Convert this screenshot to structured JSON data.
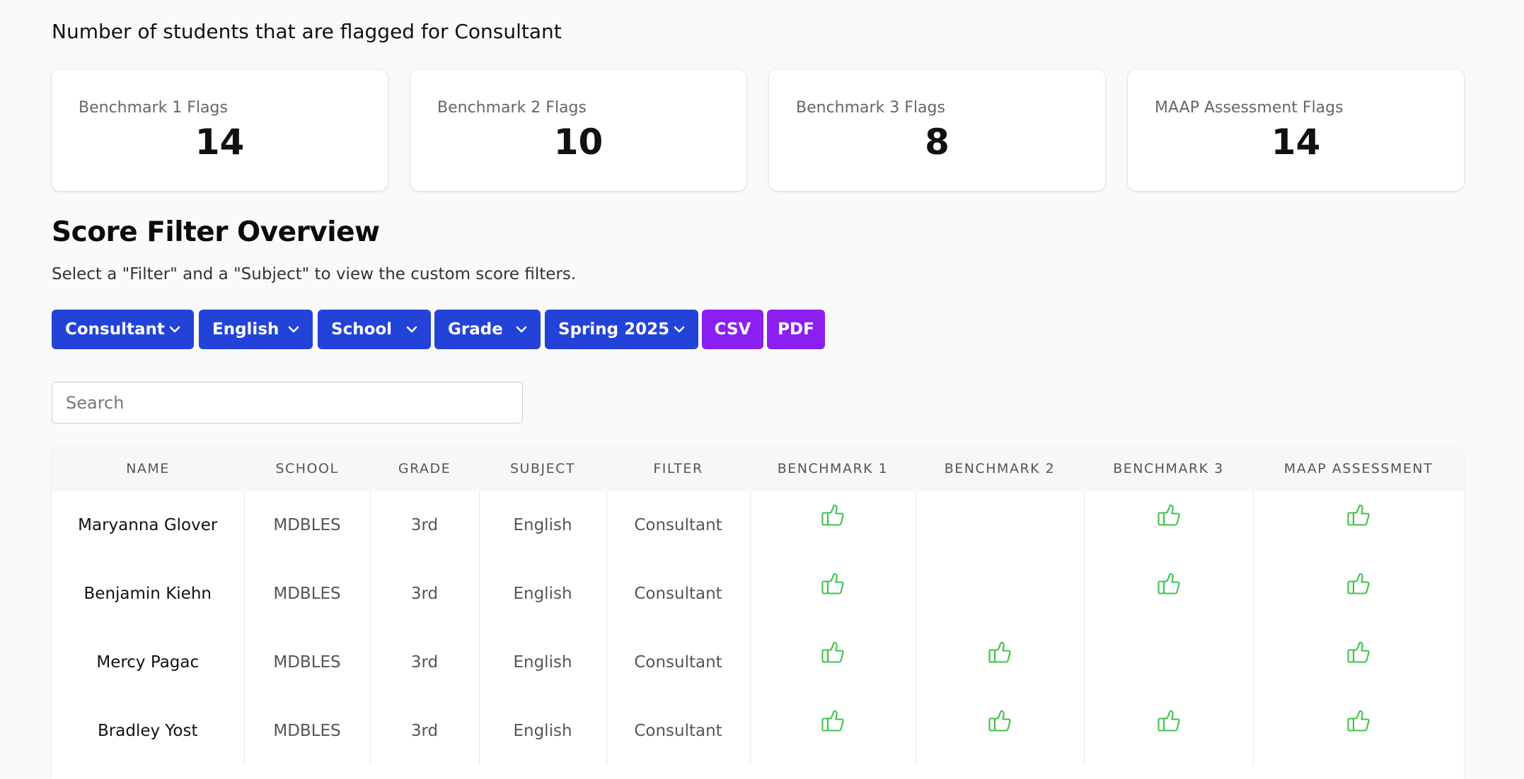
{
  "header": {
    "title": "Number of students that are flagged for Consultant"
  },
  "cards": [
    {
      "label": "Benchmark 1 Flags",
      "value": "14"
    },
    {
      "label": "Benchmark 2 Flags",
      "value": "10"
    },
    {
      "label": "Benchmark 3 Flags",
      "value": "8"
    },
    {
      "label": "MAAP Assessment Flags",
      "value": "14"
    }
  ],
  "overview": {
    "title": "Score Filter Overview",
    "subtitle": "Select a \"Filter\" and a \"Subject\" to view the custom score filters."
  },
  "filters": {
    "filter": "Consultant",
    "subject": "English",
    "school": "School",
    "grade": "Grade",
    "term": "Spring 2025",
    "csv_label": "CSV",
    "pdf_label": "PDF"
  },
  "search": {
    "placeholder": "Search",
    "value": ""
  },
  "table": {
    "columns": [
      "NAME",
      "SCHOOL",
      "GRADE",
      "SUBJECT",
      "FILTER",
      "BENCHMARK 1",
      "BENCHMARK 2",
      "BENCHMARK 3",
      "MAAP ASSESSMENT"
    ],
    "rows": [
      {
        "name": "Maryanna Glover",
        "school": "MDBLES",
        "grade": "3rd",
        "subject": "English",
        "filter": "Consultant",
        "flags": [
          true,
          false,
          true,
          true
        ]
      },
      {
        "name": "Benjamin Kiehn",
        "school": "MDBLES",
        "grade": "3rd",
        "subject": "English",
        "filter": "Consultant",
        "flags": [
          true,
          false,
          true,
          true
        ]
      },
      {
        "name": "Mercy Pagac",
        "school": "MDBLES",
        "grade": "3rd",
        "subject": "English",
        "filter": "Consultant",
        "flags": [
          true,
          true,
          false,
          true
        ]
      },
      {
        "name": "Bradley Yost",
        "school": "MDBLES",
        "grade": "3rd",
        "subject": "English",
        "filter": "Consultant",
        "flags": [
          true,
          true,
          true,
          true
        ]
      }
    ]
  },
  "colors": {
    "primary_button": "#2343d8",
    "export_button": "#8b1ef0",
    "flag_icon": "#3cc24a"
  },
  "icons": {
    "dropdown": "chevron-down-icon",
    "flag": "thumbs-up-icon"
  }
}
